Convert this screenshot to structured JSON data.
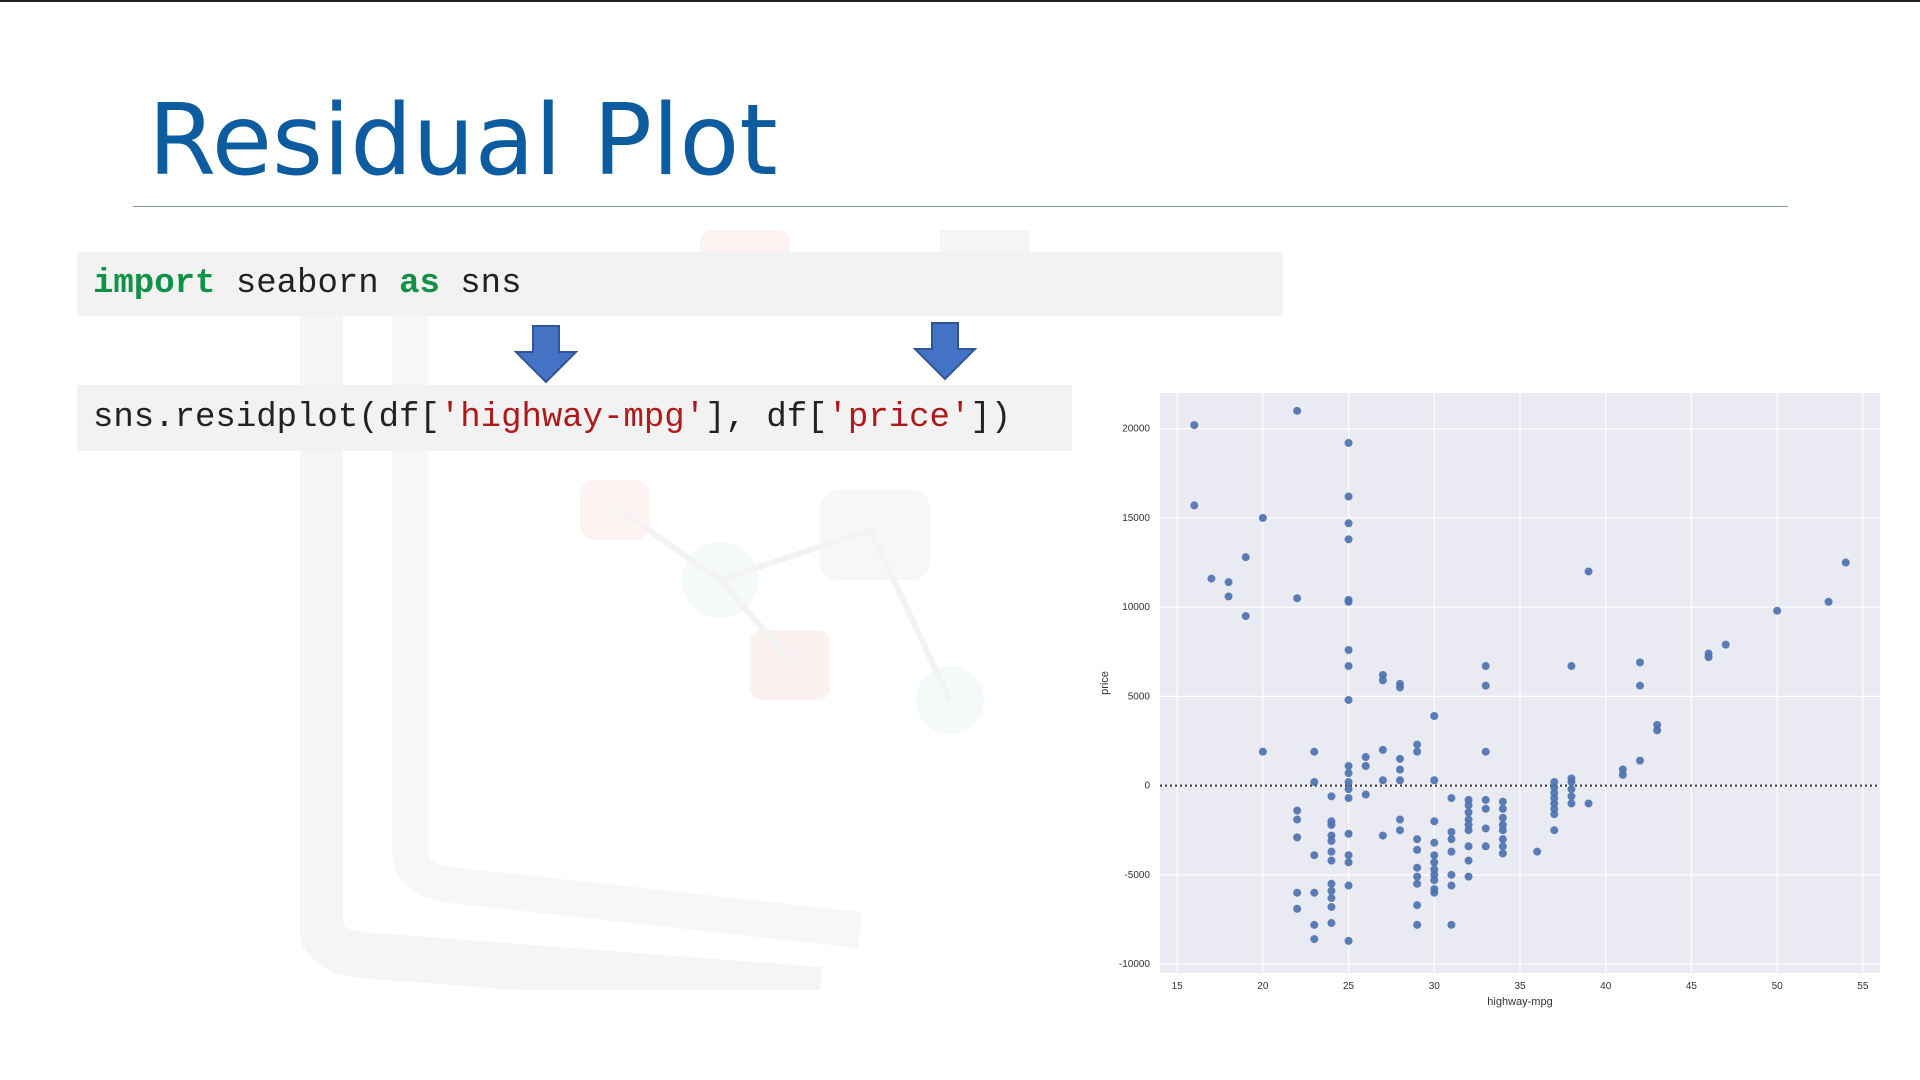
{
  "slide": {
    "title": "Residual Plot"
  },
  "code": {
    "line1": {
      "keyword_import": "import",
      "module": " seaborn ",
      "keyword_as": "as",
      "alias": " sns"
    },
    "line2": {
      "prefix": "sns.residplot(df[",
      "arg1": "'highway-mpg'",
      "middle": "], df[",
      "arg2": "'price'",
      "suffix": "])"
    }
  },
  "colors": {
    "title": "#0d5c9f",
    "keyword": "#119148",
    "string": "#b0191c",
    "arrow": "#4472c4",
    "plot_bg": "#eaeaf2",
    "point": "#4c72b0"
  },
  "chart_data": {
    "type": "scatter",
    "xlabel": "highway-mpg",
    "ylabel": "price",
    "xlim": [
      14,
      56
    ],
    "ylim": [
      -10500,
      22000
    ],
    "xticks": [
      15,
      20,
      25,
      30,
      35,
      40,
      45,
      50,
      55
    ],
    "yticks": [
      20000,
      15000,
      10000,
      5000,
      0,
      -5000,
      -10000
    ],
    "grid": true,
    "reference_line": 0,
    "points": [
      [
        16,
        20200
      ],
      [
        16,
        15700
      ],
      [
        17,
        11600
      ],
      [
        18,
        11400
      ],
      [
        18,
        10600
      ],
      [
        19,
        12800
      ],
      [
        19,
        9500
      ],
      [
        20,
        15000
      ],
      [
        20,
        1900
      ],
      [
        22,
        21000
      ],
      [
        22,
        10500
      ],
      [
        22,
        -1400
      ],
      [
        22,
        -1900
      ],
      [
        22,
        -2900
      ],
      [
        22,
        -6000
      ],
      [
        22,
        -6900
      ],
      [
        23,
        1900
      ],
      [
        23,
        200
      ],
      [
        23,
        -3900
      ],
      [
        23,
        -6000
      ],
      [
        23,
        -7800
      ],
      [
        23,
        -8600
      ],
      [
        24,
        -600
      ],
      [
        24,
        -2000
      ],
      [
        24,
        -2200
      ],
      [
        24,
        -2800
      ],
      [
        24,
        -3100
      ],
      [
        24,
        -3700
      ],
      [
        24,
        -4200
      ],
      [
        24,
        -5500
      ],
      [
        24,
        -5900
      ],
      [
        24,
        -6300
      ],
      [
        24,
        -6800
      ],
      [
        24,
        -7700
      ],
      [
        25,
        19200
      ],
      [
        25,
        16200
      ],
      [
        25,
        14700
      ],
      [
        25,
        13800
      ],
      [
        25,
        10400
      ],
      [
        25,
        10300
      ],
      [
        25,
        7600
      ],
      [
        25,
        6700
      ],
      [
        25,
        4800
      ],
      [
        25,
        1100
      ],
      [
        25,
        700
      ],
      [
        25,
        200
      ],
      [
        25,
        -200
      ],
      [
        25,
        -700
      ],
      [
        25,
        -2700
      ],
      [
        25,
        -3900
      ],
      [
        25,
        -4300
      ],
      [
        25,
        -5600
      ],
      [
        25,
        -8700
      ],
      [
        26,
        1600
      ],
      [
        26,
        1100
      ],
      [
        26,
        -500
      ],
      [
        27,
        6200
      ],
      [
        27,
        5900
      ],
      [
        27,
        2000
      ],
      [
        27,
        300
      ],
      [
        27,
        -2800
      ],
      [
        28,
        5700
      ],
      [
        28,
        5500
      ],
      [
        28,
        1500
      ],
      [
        28,
        900
      ],
      [
        28,
        300
      ],
      [
        28,
        -1900
      ],
      [
        28,
        -2500
      ],
      [
        29,
        2300
      ],
      [
        29,
        1900
      ],
      [
        29,
        -3000
      ],
      [
        29,
        -3600
      ],
      [
        29,
        -4600
      ],
      [
        29,
        -5100
      ],
      [
        29,
        -5500
      ],
      [
        29,
        -6700
      ],
      [
        29,
        -7800
      ],
      [
        30,
        3900
      ],
      [
        30,
        300
      ],
      [
        30,
        -2000
      ],
      [
        30,
        -3200
      ],
      [
        30,
        -3900
      ],
      [
        30,
        -4300
      ],
      [
        30,
        -4700
      ],
      [
        30,
        -5000
      ],
      [
        30,
        -5300
      ],
      [
        30,
        -5800
      ],
      [
        30,
        -6000
      ],
      [
        31,
        -700
      ],
      [
        31,
        -2600
      ],
      [
        31,
        -3000
      ],
      [
        31,
        -3700
      ],
      [
        31,
        -5000
      ],
      [
        31,
        -5600
      ],
      [
        31,
        -7800
      ],
      [
        32,
        -800
      ],
      [
        32,
        -1100
      ],
      [
        32,
        -1500
      ],
      [
        32,
        -1900
      ],
      [
        32,
        -2200
      ],
      [
        32,
        -2500
      ],
      [
        32,
        -3400
      ],
      [
        32,
        -4200
      ],
      [
        32,
        -5100
      ],
      [
        33,
        6700
      ],
      [
        33,
        5600
      ],
      [
        33,
        1900
      ],
      [
        33,
        -800
      ],
      [
        33,
        -1300
      ],
      [
        33,
        -2400
      ],
      [
        33,
        -3400
      ],
      [
        34,
        -900
      ],
      [
        34,
        -1300
      ],
      [
        34,
        -1800
      ],
      [
        34,
        -2200
      ],
      [
        34,
        -2500
      ],
      [
        34,
        -3000
      ],
      [
        34,
        -3400
      ],
      [
        34,
        -3800
      ],
      [
        36,
        -3700
      ],
      [
        37,
        200
      ],
      [
        37,
        -100
      ],
      [
        37,
        -400
      ],
      [
        37,
        -700
      ],
      [
        37,
        -1000
      ],
      [
        37,
        -1300
      ],
      [
        37,
        -1600
      ],
      [
        37,
        -2500
      ],
      [
        38,
        6700
      ],
      [
        38,
        400
      ],
      [
        38,
        200
      ],
      [
        38,
        -200
      ],
      [
        38,
        -600
      ],
      [
        38,
        -1000
      ],
      [
        39,
        12000
      ],
      [
        39,
        -1000
      ],
      [
        41,
        900
      ],
      [
        41,
        600
      ],
      [
        42,
        6900
      ],
      [
        42,
        5600
      ],
      [
        42,
        1400
      ],
      [
        43,
        3400
      ],
      [
        43,
        3100
      ],
      [
        46,
        7400
      ],
      [
        46,
        7200
      ],
      [
        47,
        7900
      ],
      [
        50,
        9800
      ],
      [
        53,
        10300
      ],
      [
        54,
        12500
      ]
    ]
  }
}
